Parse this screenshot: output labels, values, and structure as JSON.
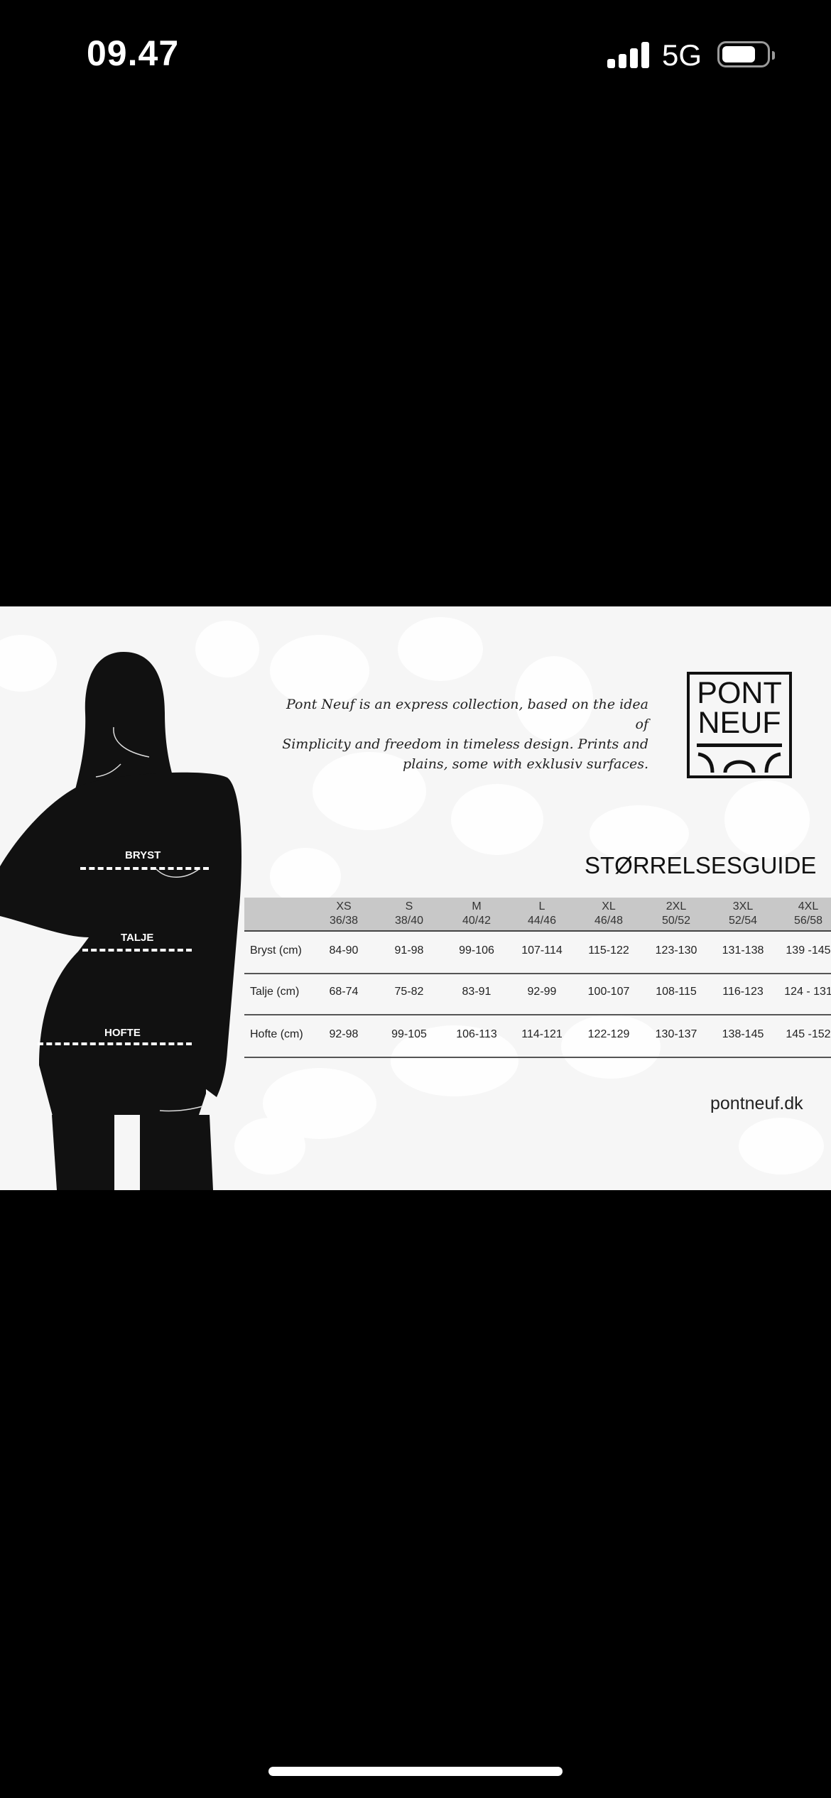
{
  "status_bar": {
    "time": "09.47",
    "network": "5G",
    "signal_bars": 4,
    "battery_level": 0.7,
    "icons": [
      "signal-icon",
      "battery-icon"
    ]
  },
  "figure": {
    "labels": {
      "bust": "BRYST",
      "waist": "TALJE",
      "hip": "HOFTE"
    }
  },
  "brand": {
    "tagline": [
      "Pont Neuf is an express collection, based on the idea of",
      "Simplicity and freedom in timeless design. Prints and",
      "plains, some with exklusiv surfaces."
    ],
    "logo_line1": "PONT",
    "logo_line2": "NEUF",
    "website": "pontneuf.dk"
  },
  "size_guide": {
    "title": "STØRRELSESGUIDE",
    "columns": [
      {
        "size": "XS",
        "eu": "36/38"
      },
      {
        "size": "S",
        "eu": "38/40"
      },
      {
        "size": "M",
        "eu": "40/42"
      },
      {
        "size": "L",
        "eu": "44/46"
      },
      {
        "size": "XL",
        "eu": "46/48"
      },
      {
        "size": "2XL",
        "eu": "50/52"
      },
      {
        "size": "3XL",
        "eu": "52/54"
      },
      {
        "size": "4XL",
        "eu": "56/58"
      }
    ],
    "rows": [
      {
        "label": "Bryst (cm)",
        "values": [
          "84-90",
          "91-98",
          "99-106",
          "107-114",
          "115-122",
          "123-130",
          "131-138",
          "139 -145"
        ]
      },
      {
        "label": "Talje (cm)",
        "values": [
          "68-74",
          "75-82",
          "83-91",
          "92-99",
          "100-107",
          "108-115",
          "116-123",
          "124 - 131"
        ]
      },
      {
        "label": "Hofte (cm)",
        "values": [
          "92-98",
          "99-105",
          "106-113",
          "114-121",
          "122-129",
          "130-137",
          "138-145",
          "145 -152"
        ]
      }
    ]
  }
}
